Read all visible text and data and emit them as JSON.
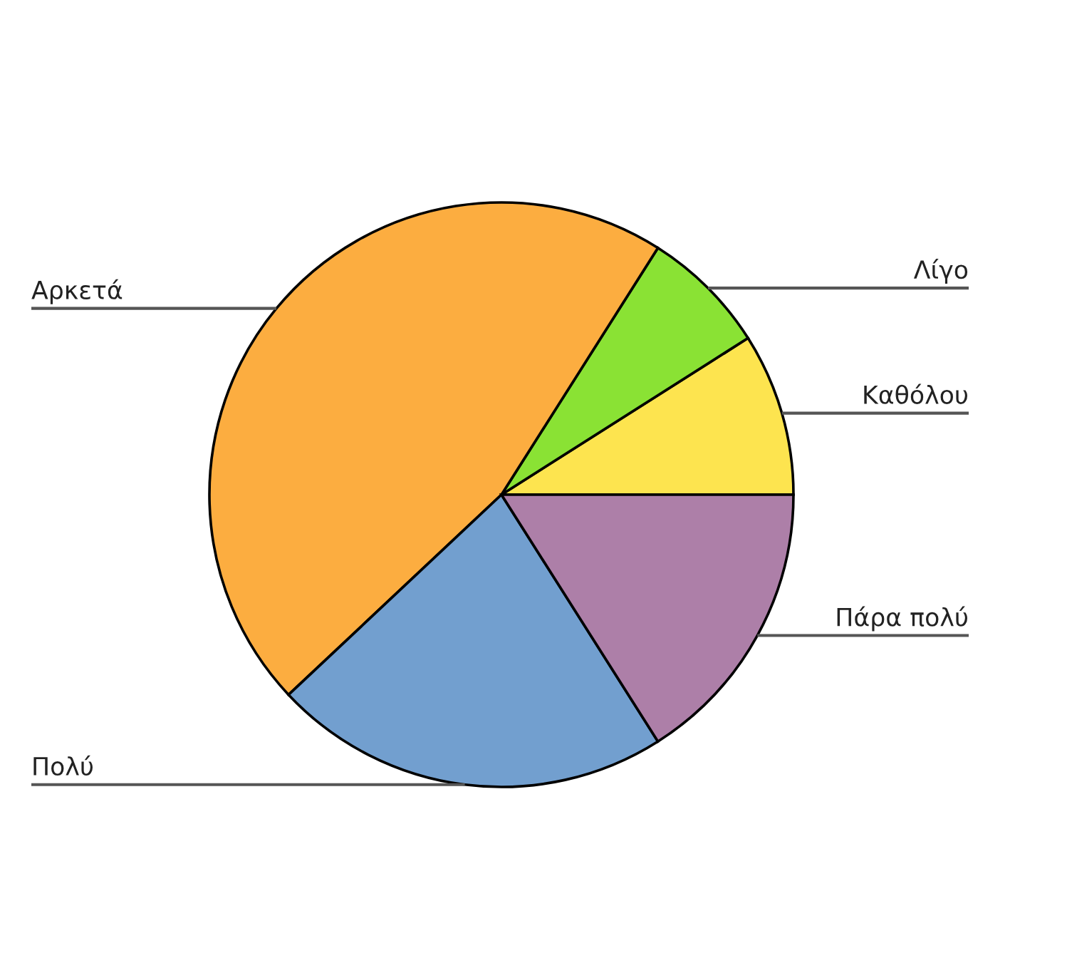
{
  "chart_data": {
    "type": "pie",
    "categories": [
      "Καθόλου",
      "Λίγο",
      "Αρκετά",
      "Πολύ",
      "Πάρα πολύ"
    ],
    "values": [
      9,
      7,
      46,
      22,
      16
    ],
    "colors": [
      "#fde44f",
      "#8ae234",
      "#fcad40",
      "#729fcf",
      "#ad7fa8"
    ]
  }
}
